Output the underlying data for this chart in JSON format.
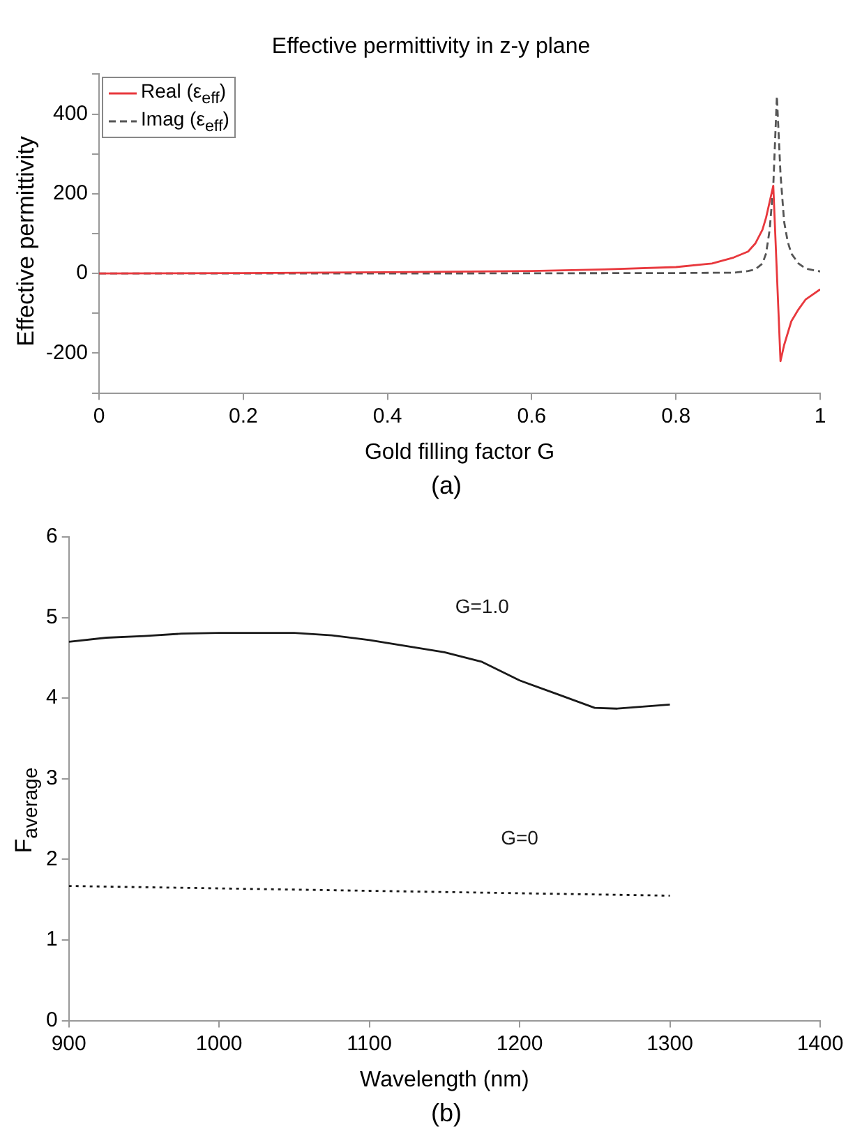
{
  "chart_data": [
    {
      "type": "line",
      "title": "Effective permittivity in z-y plane",
      "xlabel": "Gold filling factor G",
      "ylabel": "Effective permittivity",
      "xlim": [
        0,
        1
      ],
      "xticks": [
        0,
        0.2,
        0.4,
        0.6,
        0.8,
        1
      ],
      "ylim": [
        -300,
        500
      ],
      "yticks": [
        {
          "value": -300,
          "label": null
        },
        -200,
        {
          "value": -100,
          "label": null
        },
        0,
        {
          "value": 100,
          "label": null
        },
        200,
        {
          "value": 300,
          "label": null
        },
        400,
        {
          "value": 500,
          "label": null
        }
      ],
      "grid": false,
      "legend": "top left",
      "annotations": [
        "(a)"
      ],
      "series": [
        {
          "name": "Real (ε$_{eff}$)",
          "color": "#e8383d",
          "line_style": "solid",
          "x": [
            0,
            0.2,
            0.4,
            0.6,
            0.7,
            0.8,
            0.85,
            0.88,
            0.9,
            0.91,
            0.92,
            0.925,
            0.93,
            0.935,
            0.94,
            0.945,
            0.95,
            0.96,
            0.97,
            0.98,
            1
          ],
          "values": [
            0,
            1,
            3,
            6,
            10,
            16,
            25,
            40,
            55,
            75,
            110,
            140,
            180,
            220,
            0,
            -220,
            -180,
            -120,
            -90,
            -65,
            -40
          ]
        },
        {
          "name": "Imag (ε$_{eff}$)",
          "color": "#555555",
          "line_style": "dashed",
          "x": [
            0,
            0.4,
            0.8,
            0.88,
            0.9,
            0.91,
            0.92,
            0.925,
            0.93,
            0.935,
            0.94,
            0.945,
            0.95,
            0.955,
            0.96,
            0.97,
            0.98,
            1
          ],
          "values": [
            0,
            0,
            1,
            2,
            6,
            10,
            25,
            50,
            110,
            220,
            445,
            250,
            130,
            80,
            50,
            25,
            12,
            5
          ]
        }
      ]
    },
    {
      "type": "line",
      "xlabel": "Wavelength (nm)",
      "ylabel": "F$_{average}$",
      "xlim": [
        900,
        1400
      ],
      "xticks": [
        900,
        1000,
        1100,
        1200,
        1300,
        1400
      ],
      "ylim": [
        0,
        6
      ],
      "yticks": [
        0,
        1,
        2,
        3,
        4,
        5,
        6
      ],
      "grid": false,
      "legend": false,
      "annotations": [
        "(b)"
      ],
      "series": [
        {
          "name": "G=1.0",
          "color": "#1a1a1a",
          "line_style": "solid",
          "x": [
            900,
            925,
            950,
            975,
            1000,
            1050,
            1075,
            1100,
            1150,
            1175,
            1200,
            1225,
            1250,
            1265,
            1300
          ],
          "values": [
            4.7,
            4.75,
            4.77,
            4.8,
            4.81,
            4.81,
            4.78,
            4.72,
            4.57,
            4.45,
            4.22,
            4.05,
            3.88,
            3.87,
            3.92
          ]
        },
        {
          "name": "G=0",
          "color": "#1a1a1a",
          "line_style": "dotted",
          "x": [
            900,
            1000,
            1100,
            1200,
            1300
          ],
          "values": [
            1.67,
            1.64,
            1.61,
            1.58,
            1.55
          ]
        }
      ]
    }
  ]
}
